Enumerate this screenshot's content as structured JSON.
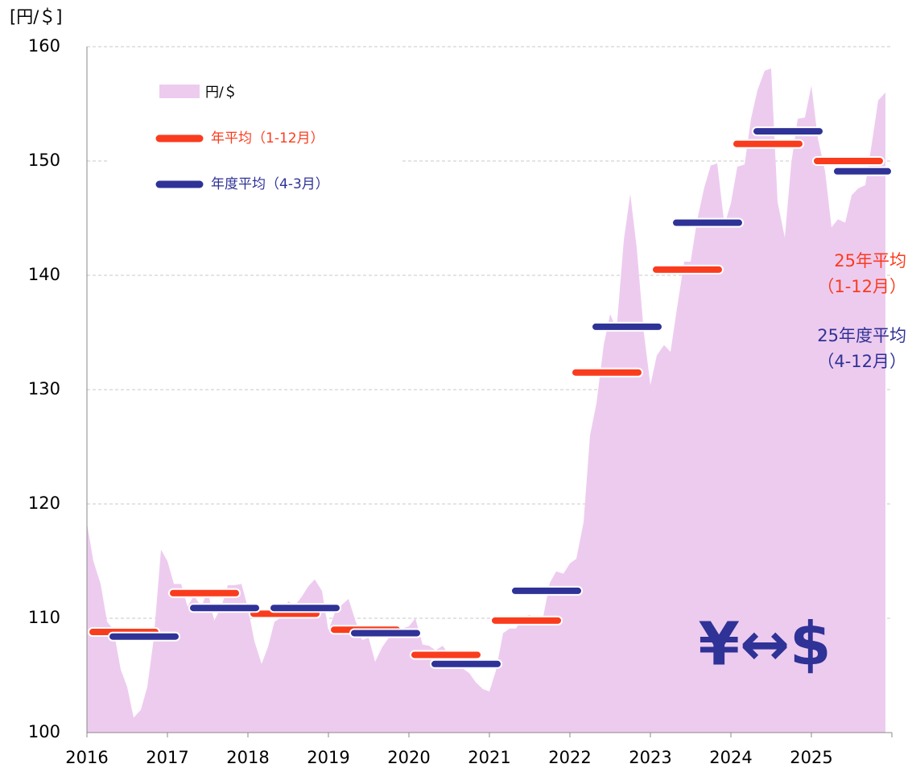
{
  "chart_data": {
    "type": "area",
    "y_label": "[円/＄]",
    "ylim": [
      100,
      160
    ],
    "yticks": [
      100,
      110,
      120,
      130,
      140,
      150,
      160
    ],
    "xlim": [
      2016,
      2026
    ],
    "xticks": [
      2016,
      2017,
      2018,
      2019,
      2020,
      2021,
      2022,
      2023,
      2024,
      2025
    ],
    "grid": true,
    "legend": "upper left",
    "series": [
      {
        "name": "円/＄",
        "color": "#edcbef",
        "x": [
          2016.0,
          2016.08,
          2016.17,
          2016.25,
          2016.33,
          2016.42,
          2016.5,
          2016.58,
          2016.67,
          2016.75,
          2016.83,
          2016.92,
          2017.0,
          2017.08,
          2017.17,
          2017.25,
          2017.33,
          2017.42,
          2017.5,
          2017.58,
          2017.67,
          2017.75,
          2017.83,
          2017.92,
          2018.0,
          2018.08,
          2018.17,
          2018.25,
          2018.33,
          2018.42,
          2018.5,
          2018.58,
          2018.67,
          2018.75,
          2018.83,
          2018.92,
          2019.0,
          2019.08,
          2019.17,
          2019.25,
          2019.33,
          2019.42,
          2019.5,
          2019.58,
          2019.67,
          2019.75,
          2019.83,
          2019.92,
          2020.0,
          2020.08,
          2020.17,
          2020.25,
          2020.33,
          2020.42,
          2020.5,
          2020.58,
          2020.67,
          2020.75,
          2020.83,
          2020.92,
          2021.0,
          2021.08,
          2021.17,
          2021.25,
          2021.33,
          2021.42,
          2021.5,
          2021.58,
          2021.67,
          2021.75,
          2021.83,
          2021.92,
          2022.0,
          2022.08,
          2022.17,
          2022.25,
          2022.33,
          2022.42,
          2022.5,
          2022.58,
          2022.67,
          2022.75,
          2022.83,
          2022.92,
          2023.0,
          2023.08,
          2023.17,
          2023.25,
          2023.33,
          2023.42,
          2023.5,
          2023.58,
          2023.67,
          2023.75,
          2023.83,
          2023.92,
          2024.0,
          2024.08,
          2024.17,
          2024.25,
          2024.33,
          2024.42,
          2024.5,
          2024.58,
          2024.67,
          2024.75,
          2024.83,
          2024.92,
          2025.0,
          2025.08,
          2025.17,
          2025.25,
          2025.33,
          2025.42,
          2025.5,
          2025.58,
          2025.67,
          2025.75,
          2025.83,
          2025.92
        ],
        "values": [
          118.3,
          115.0,
          113.0,
          109.7,
          109.0,
          105.5,
          104.0,
          101.3,
          102.0,
          104.0,
          108.2,
          116.0,
          115.0,
          113.0,
          113.0,
          111.0,
          112.0,
          111.0,
          112.4,
          109.8,
          111.0,
          112.9,
          112.9,
          113.0,
          110.9,
          108.0,
          106.0,
          107.5,
          109.7,
          110.1,
          111.5,
          111.1,
          111.9,
          112.8,
          113.4,
          112.4,
          108.9,
          110.5,
          111.2,
          111.7,
          109.9,
          108.1,
          108.3,
          106.2,
          107.5,
          108.3,
          108.9,
          109.1,
          109.3,
          110.0,
          107.7,
          107.6,
          107.2,
          107.6,
          106.8,
          106.0,
          105.6,
          105.2,
          104.4,
          103.8,
          103.6,
          105.4,
          108.7,
          109.1,
          109.1,
          110.1,
          110.3,
          109.8,
          110.2,
          113.1,
          114.1,
          113.9,
          114.8,
          115.2,
          118.4,
          126.0,
          128.8,
          133.9,
          136.6,
          135.3,
          143.1,
          147.1,
          142.4,
          134.9,
          130.4,
          133.0,
          133.9,
          133.3,
          137.1,
          141.2,
          141.2,
          144.8,
          147.7,
          149.6,
          149.8,
          144.4,
          146.3,
          149.5,
          149.7,
          153.7,
          156.2,
          157.9,
          158.1,
          146.4,
          143.3,
          149.8,
          153.7,
          153.8,
          156.6,
          152.0,
          149.1,
          144.2,
          144.9,
          144.6,
          147.0,
          147.6,
          147.9,
          151.5,
          155.3,
          156.0
        ]
      }
    ],
    "bars": [
      {
        "name": "年平均（1-12月）",
        "color": "#fa3c1e",
        "x": [
          2016,
          2017,
          2018,
          2019,
          2020,
          2021,
          2022,
          2023,
          2024,
          2025
        ],
        "values": [
          108.8,
          112.2,
          110.4,
          109.0,
          106.8,
          109.8,
          131.5,
          140.5,
          151.5,
          150.0
        ]
      },
      {
        "name": "年度平均（4-3月）",
        "color": "#2f3296",
        "x": [
          2016,
          2017,
          2018,
          2019,
          2020,
          2021,
          2022,
          2023,
          2024,
          2025
        ],
        "values": [
          108.4,
          110.9,
          110.9,
          108.7,
          106.0,
          112.4,
          135.5,
          144.6,
          152.6,
          149.1
        ]
      }
    ],
    "annotations": [
      {
        "lines": [
          "25年平均",
          "（1-12月）"
        ],
        "color": "#fa3c1e"
      },
      {
        "lines": [
          "25年度平均",
          "（4-12月）"
        ],
        "color": "#2f3296"
      }
    ],
    "logo": "¥↔$"
  }
}
